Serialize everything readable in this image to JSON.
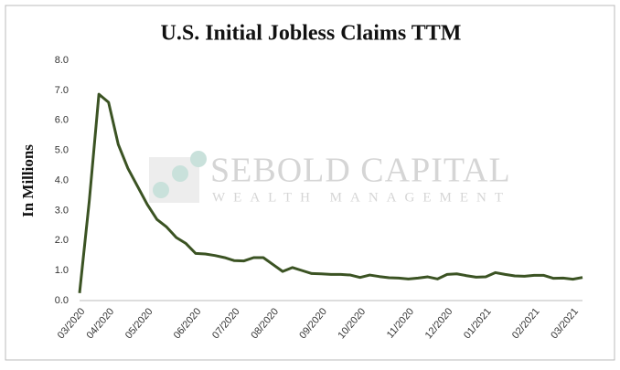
{
  "chart_data": {
    "type": "line",
    "title": "U.S. Initial Jobless Claims TTM",
    "y_label": "In Millions",
    "watermark": {
      "title": "SEBOLD CAPITAL",
      "subtitle": "WEALTH MANAGEMENT"
    },
    "categories": [
      "03/2020",
      null,
      null,
      "04/2020",
      null,
      null,
      null,
      "05/2020",
      null,
      null,
      null,
      null,
      "06/2020",
      null,
      null,
      null,
      "07/2020",
      null,
      null,
      null,
      "08/2020",
      null,
      null,
      null,
      null,
      "09/2020",
      null,
      null,
      null,
      "10/2020",
      null,
      null,
      null,
      null,
      "11/2020",
      null,
      null,
      null,
      "12/2020",
      null,
      null,
      null,
      "01/2021",
      null,
      null,
      null,
      null,
      "02/2021",
      null,
      null,
      null,
      "03/2021",
      null
    ],
    "series": [
      {
        "name": "Initial Jobless Claims",
        "color": "#3b5323",
        "values": [
          0.25,
          3.3,
          6.87,
          6.6,
          5.2,
          4.4,
          3.8,
          3.2,
          2.7,
          2.45,
          2.1,
          1.9,
          1.57,
          1.55,
          1.5,
          1.43,
          1.33,
          1.32,
          1.43,
          1.43,
          1.2,
          0.97,
          1.1,
          1.0,
          0.9,
          0.89,
          0.87,
          0.87,
          0.85,
          0.77,
          0.85,
          0.8,
          0.76,
          0.75,
          0.72,
          0.75,
          0.79,
          0.72,
          0.87,
          0.89,
          0.83,
          0.78,
          0.79,
          0.93,
          0.87,
          0.82,
          0.81,
          0.84,
          0.84,
          0.74,
          0.75,
          0.71,
          0.77
        ]
      }
    ],
    "ylim": [
      0,
      8
    ],
    "yticks": [
      {
        "value": 0,
        "label": "0.0"
      },
      {
        "value": 1,
        "label": "1.0"
      },
      {
        "value": 2,
        "label": "2.0"
      },
      {
        "value": 3,
        "label": "3.0"
      },
      {
        "value": 4,
        "label": "4.0"
      },
      {
        "value": 5,
        "label": "5.0"
      },
      {
        "value": 6,
        "label": "6.0"
      },
      {
        "value": 7,
        "label": "7.0"
      },
      {
        "value": 8,
        "label": "8.0"
      }
    ],
    "grid": false
  }
}
